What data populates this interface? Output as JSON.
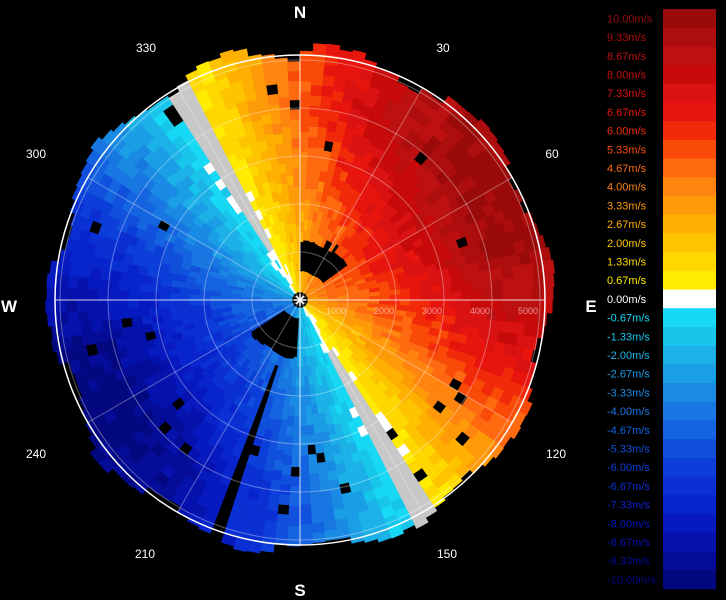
{
  "chart_data": {
    "type": "heatmap",
    "title": "",
    "projection": "polar-ppi",
    "quantity": "radial velocity",
    "unit": "m/s",
    "compass_labels": {
      "north": "N",
      "south": "S",
      "east": "E",
      "west": "W"
    },
    "azimuth_tick_labels": [
      "30",
      "60",
      "120",
      "150",
      "210",
      "240",
      "300",
      "330"
    ],
    "range_ring_labels": [
      "1000",
      "2000",
      "3000",
      "4000",
      "5000"
    ],
    "grid": true,
    "legend_position": "right",
    "colorbar": {
      "labels": [
        "10.00m/s",
        "9.33m/s",
        "8.67m/s",
        "8.00m/s",
        "7.33m/s",
        "6.67m/s",
        "6.00m/s",
        "5.33m/s",
        "4.67m/s",
        "4.00m/s",
        "3.33m/s",
        "2.67m/s",
        "2.00m/s",
        "1.33m/s",
        "0.67m/s",
        "0.00m/s",
        "-0.67m/s",
        "-1.33m/s",
        "-2.00m/s",
        "-2.67m/s",
        "-3.33m/s",
        "-4.00m/s",
        "-4.67m/s",
        "-5.33m/s",
        "-6.00m/s",
        "-6.67m/s",
        "-7.33m/s",
        "-8.00m/s",
        "-8.67m/s",
        "-9.33m/s",
        "-10.00m/s"
      ],
      "values": [
        10.0,
        9.33,
        8.67,
        8.0,
        7.33,
        6.67,
        6.0,
        5.33,
        4.67,
        4.0,
        3.33,
        2.67,
        2.0,
        1.33,
        0.67,
        0.0,
        -0.67,
        -1.33,
        -2.0,
        -2.67,
        -3.33,
        -4.0,
        -4.67,
        -5.33,
        -6.0,
        -6.67,
        -7.33,
        -8.0,
        -8.67,
        -9.33,
        -10.0
      ],
      "colors": [
        "#9a0a0a",
        "#ad0d0d",
        "#bd1010",
        "#c80a0a",
        "#da1212",
        "#e8140e",
        "#f22a0a",
        "#fa4a08",
        "#ff6a10",
        "#ff8410",
        "#ff9a08",
        "#ffb000",
        "#ffc400",
        "#ffd800",
        "#ffec00",
        "#ffffff",
        "#17d9f5",
        "#18c6ec",
        "#1cb2e8",
        "#1a9ee6",
        "#1a8be4",
        "#1877e2",
        "#1463e0",
        "#1050dd",
        "#0c3fd9",
        "#0a30d4",
        "#0824cc",
        "#061ac0",
        "#0512ae",
        "#040c98",
        "#030880"
      ]
    },
    "field": {
      "receding_direction_deg": 60,
      "max_velocity": 10.0,
      "range_limit_km": 5.1
    }
  }
}
